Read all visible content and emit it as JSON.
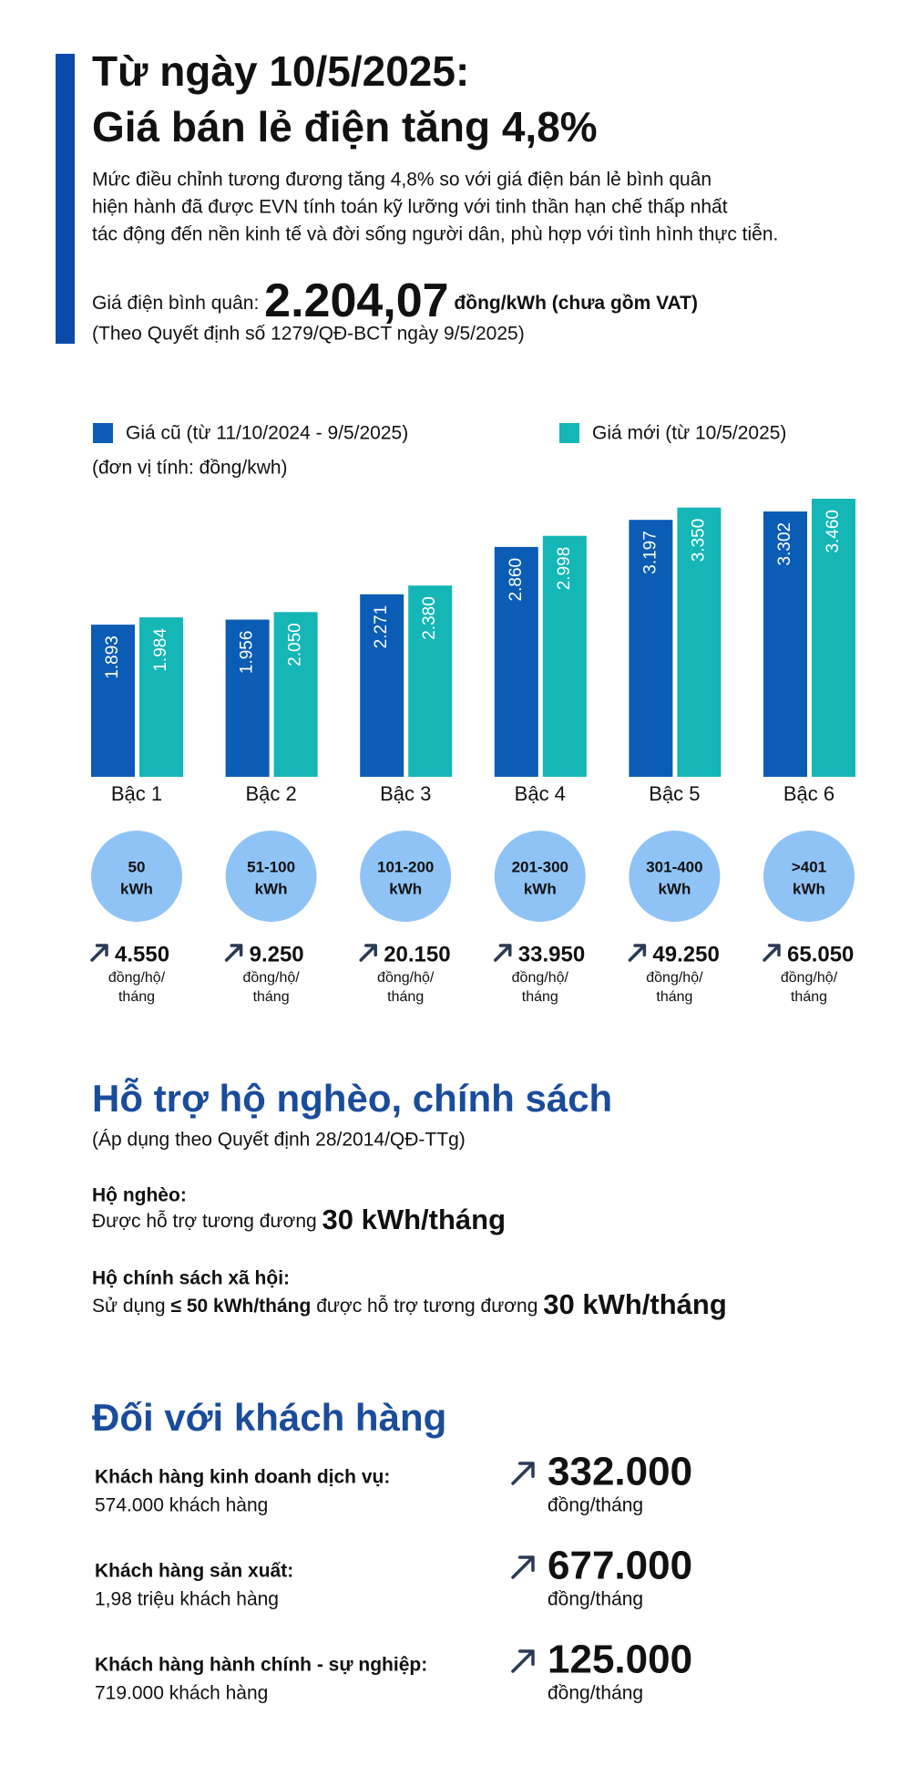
{
  "header": {
    "title_line1": "Từ ngày 10/5/2025:",
    "title_line2": "Giá bán lẻ điện tăng 4,8%",
    "description": [
      "Mức điều chỉnh tương đương tăng 4,8% so với giá điện bán lẻ bình quân",
      "hiện hành đã được EVN tính toán kỹ lưỡng với tinh thần hạn chế thấp nhất",
      "tác động đến nền kinh tế và đời sống người dân, phù hợp với tình hình thực tiễn."
    ],
    "average_label": "Giá điện bình quân:",
    "average_value": "2.204,07",
    "average_unit": "đồng/kWh (chưa gồm VAT)",
    "source": "(Theo Quyết định số 1279/QĐ-BCT ngày 9/5/2025)"
  },
  "chart_data": {
    "type": "bar",
    "unit_note": "(đơn vị tính: đồng/kwh)",
    "categories": [
      "Bậc 1",
      "Bậc 2",
      "Bậc 3",
      "Bậc 4",
      "Bậc 5",
      "Bậc 6"
    ],
    "series": [
      {
        "name": "Giá cũ (từ 11/10/2024 - 9/5/2025)",
        "color": "#0b5cb5",
        "values": [
          1893,
          1956,
          2271,
          2860,
          3197,
          3302
        ],
        "value_labels": [
          "1.893",
          "1.956",
          "2.271",
          "2.860",
          "3.197",
          "3.302"
        ]
      },
      {
        "name": "Giá mới (từ 10/5/2025)",
        "color": "#14b6b6",
        "values": [
          1984,
          2050,
          2380,
          2998,
          3350,
          3460
        ],
        "value_labels": [
          "1.984",
          "2.050",
          "2.380",
          "2.998",
          "3.350",
          "3.460"
        ]
      }
    ]
  },
  "tiers": [
    {
      "range": "50",
      "unit": "kWh",
      "increase": "4.550",
      "increase_unit_line1": "đồng/hộ/",
      "increase_unit_line2": "tháng"
    },
    {
      "range": "51-100",
      "unit": "kWh",
      "increase": "9.250",
      "increase_unit_line1": "đồng/hộ/",
      "increase_unit_line2": "tháng"
    },
    {
      "range": "101-200",
      "unit": "kWh",
      "increase": "20.150",
      "increase_unit_line1": "đồng/hộ/",
      "increase_unit_line2": "tháng"
    },
    {
      "range": "201-300",
      "unit": "kWh",
      "increase": "33.950",
      "increase_unit_line1": "đồng/hộ/",
      "increase_unit_line2": "tháng"
    },
    {
      "range": "301-400",
      "unit": "kWh",
      "increase": "49.250",
      "increase_unit_line1": "đồng/hộ/",
      "increase_unit_line2": "tháng"
    },
    {
      "range": ">401",
      "unit": "kWh",
      "increase": "65.050",
      "increase_unit_line1": "đồng/hộ/",
      "increase_unit_line2": "tháng"
    }
  ],
  "support": {
    "title": "Hỗ trợ hộ nghèo, chính sách",
    "note": "(Áp dụng theo Quyết định 28/2014/QĐ-TTg)",
    "poor": {
      "label": "Hộ nghèo:",
      "text": "Được hỗ trợ tương đương",
      "amount": "30 kWh/tháng"
    },
    "policy": {
      "label": "Hộ chính sách xã hội:",
      "text_before": "Sử dụng",
      "threshold": "≤ 50 kWh/tháng",
      "text_after": "được hỗ trợ tương đương",
      "amount": "30 kWh/tháng"
    }
  },
  "customers": {
    "title": "Đối với khách hàng",
    "items": [
      {
        "name": "Khách hàng kinh doanh dịch vụ:",
        "count": "574.000 khách hàng",
        "increase": "332.000",
        "unit": "đồng/tháng"
      },
      {
        "name": "Khách hàng sản xuất:",
        "count": "1,98 triệu khách hàng",
        "increase": "677.000",
        "unit": "đồng/tháng"
      },
      {
        "name": "Khách hàng hành chính - sự nghiệp:",
        "count": "719.000 khách hàng",
        "increase": "125.000",
        "unit": "đồng/tháng"
      }
    ]
  }
}
